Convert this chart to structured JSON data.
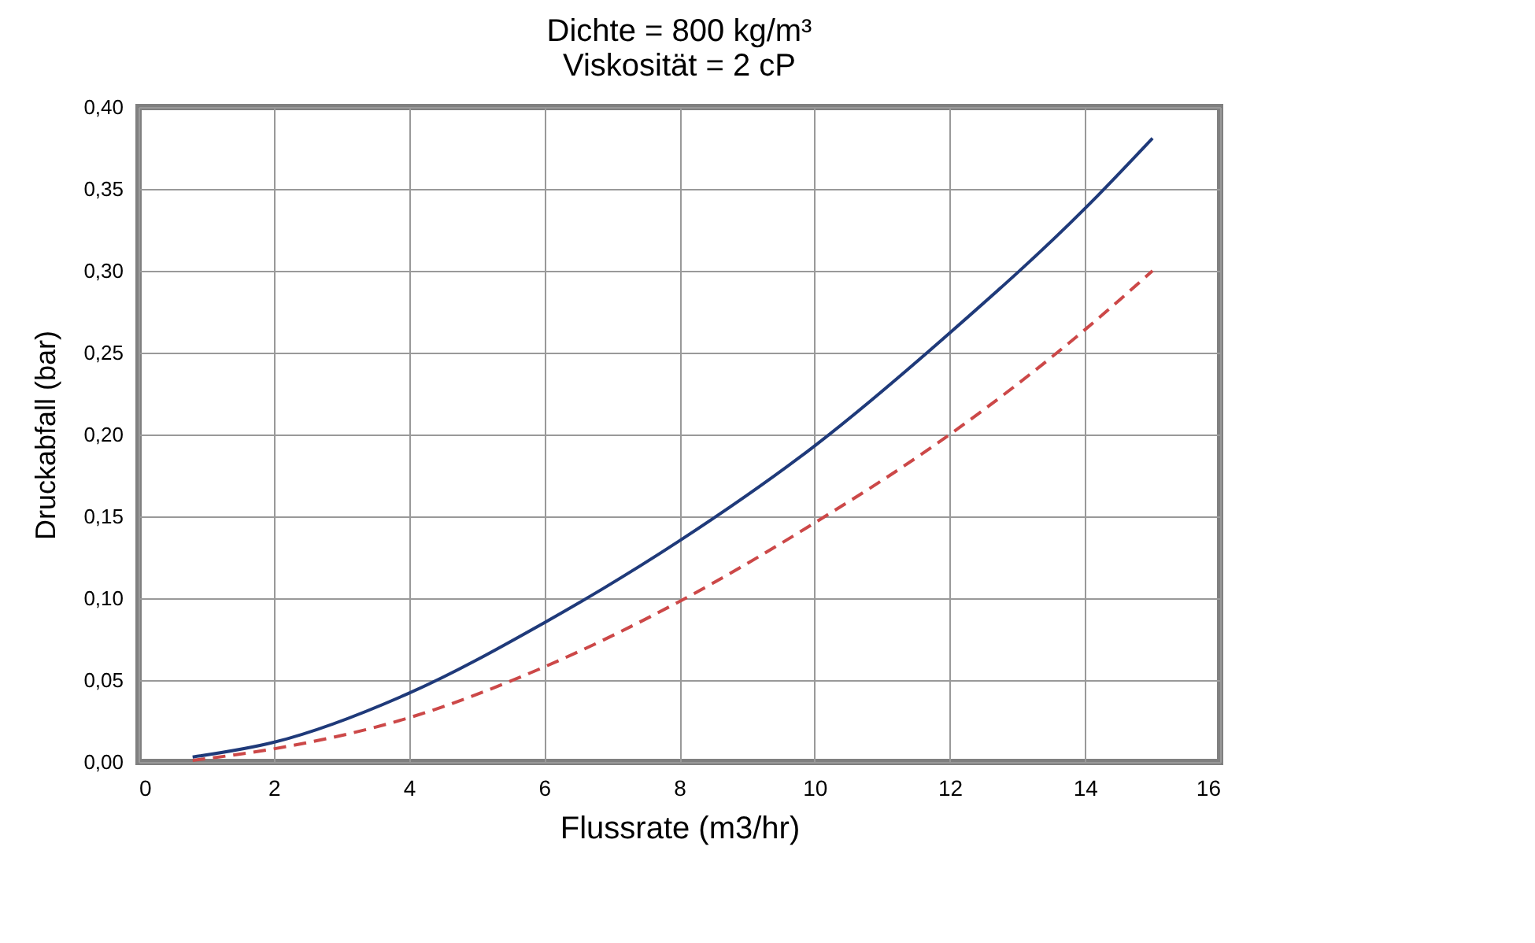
{
  "chart_data": {
    "type": "line",
    "title": "Dichte = 800 kg/m³\nViskosität = 2 cP",
    "xlabel": "Flussrate (m3/hr)",
    "ylabel": "Druckabfall (bar)",
    "xlim": [
      0,
      16
    ],
    "xticks": [
      0,
      2,
      4,
      6,
      8,
      10,
      12,
      14,
      16
    ],
    "ylim": [
      0,
      0.4
    ],
    "yticks": [
      {
        "value": 0,
        "label": "0,00"
      },
      {
        "value": 0.05,
        "label": "0,05"
      },
      {
        "value": 0.1,
        "label": "0,10"
      },
      {
        "value": 0.15,
        "label": "0,15"
      },
      {
        "value": 0.2,
        "label": "0,20"
      },
      {
        "value": 0.25,
        "label": "0,25"
      },
      {
        "value": 0.3,
        "label": "0,30"
      },
      {
        "value": 0.35,
        "label": "0,35"
      },
      {
        "value": 0.4,
        "label": "0,40"
      }
    ],
    "grid": true,
    "marker": "none",
    "x": [
      0.8,
      2,
      4,
      6,
      8,
      10,
      12,
      14,
      15
    ],
    "series": [
      {
        "color": "#cc4848",
        "line_style": "dashed",
        "values": [
          0.001,
          0.008,
          0.027,
          0.058,
          0.098,
          0.146,
          0.2,
          0.264,
          0.3
        ]
      },
      {
        "color": "#1f3a7a",
        "line_style": "solid",
        "values": [
          0.003,
          0.012,
          0.042,
          0.085,
          0.135,
          0.193,
          0.262,
          0.338,
          0.381
        ]
      }
    ]
  }
}
